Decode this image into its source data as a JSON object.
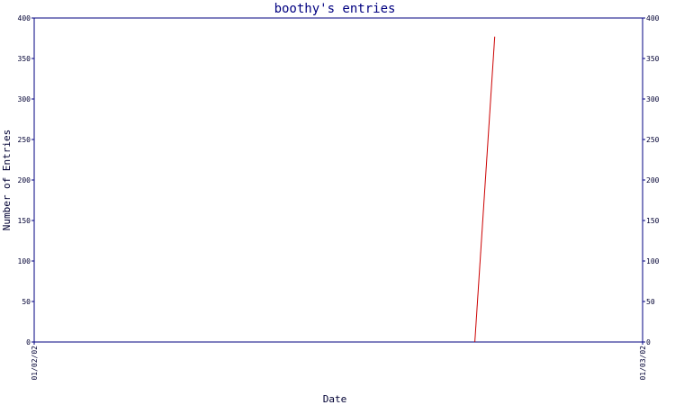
{
  "chart_data": {
    "type": "line",
    "title": "boothy's entries",
    "xlabel": "Date",
    "ylabel": "Number of Entries",
    "x_tick_labels": [
      "01/02/02",
      "01/03/02"
    ],
    "xlim": [
      "2002-01-02",
      "2002-01-03"
    ],
    "ylim": [
      0,
      400
    ],
    "y_ticks": [
      0,
      50,
      100,
      150,
      200,
      250,
      300,
      350,
      400
    ],
    "grid": false,
    "series": [
      {
        "color": "#cc0000",
        "x": [
          "2002-01-02T17:23",
          "2002-01-02T18:10"
        ],
        "values": [
          0,
          377
        ]
      }
    ]
  },
  "colors": {
    "axis": "#000080",
    "line": "#cc0000"
  }
}
